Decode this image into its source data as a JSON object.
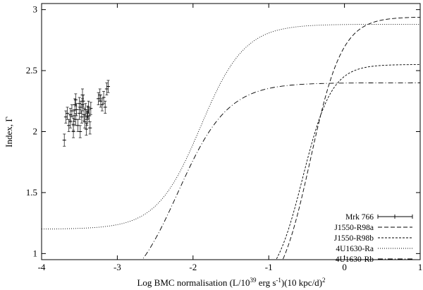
{
  "chart_data": {
    "type": "scatter",
    "title": "",
    "xlabel_main": "Log BMC normalisation (L/10",
    "xlabel_sup1": "39",
    "xlabel_mid": " erg s",
    "xlabel_sup2": "-1",
    "xlabel_tail": ")(10 kpc/d)",
    "xlabel_sup3": "2",
    "ylabel": "Index, Γ",
    "xlim": [
      -4,
      1
    ],
    "ylim": [
      0.95,
      3.05
    ],
    "xticks": [
      {
        "value": -4,
        "label": "-4"
      },
      {
        "value": -3,
        "label": "-3"
      },
      {
        "value": -2,
        "label": "-2"
      },
      {
        "value": -1,
        "label": "-1"
      },
      {
        "value": 0,
        "label": "0"
      },
      {
        "value": 1,
        "label": "1"
      }
    ],
    "yticks": [
      {
        "value": 1,
        "label": "1"
      },
      {
        "value": 1.5,
        "label": "1.5"
      },
      {
        "value": 2,
        "label": "2"
      },
      {
        "value": 2.5,
        "label": "2.5"
      },
      {
        "value": 3,
        "label": "3"
      }
    ],
    "legend_position": "bottom-right",
    "points": {
      "name": "Mrk 766",
      "x": [
        -3.7,
        -3.68,
        -3.66,
        -3.64,
        -3.62,
        -3.6,
        -3.58,
        -3.57,
        -3.56,
        -3.55,
        -3.54,
        -3.52,
        -3.5,
        -3.49,
        -3.48,
        -3.47,
        -3.46,
        -3.45,
        -3.44,
        -3.43,
        -3.42,
        -3.41,
        -3.4,
        -3.39,
        -3.38,
        -3.37,
        -3.36,
        -3.35,
        -3.5,
        -3.58,
        -3.62,
        -3.46,
        -3.4,
        -3.55,
        -3.25,
        -3.23,
        -3.22,
        -3.2,
        -3.18,
        -3.16,
        -3.14,
        -3.12
      ],
      "y": [
        1.93,
        2.12,
        2.15,
        2.05,
        2.08,
        2.17,
        2.0,
        2.13,
        2.22,
        2.1,
        2.18,
        2.05,
        2.15,
        2.0,
        2.2,
        2.12,
        2.3,
        2.25,
        2.14,
        2.08,
        2.18,
        2.02,
        2.1,
        2.16,
        2.2,
        2.13,
        2.03,
        2.19,
        2.23,
        2.06,
        2.14,
        2.22,
        2.12,
        2.26,
        2.27,
        2.3,
        2.25,
        2.22,
        2.28,
        2.2,
        2.35,
        2.37
      ],
      "yerr": 0.05
    },
    "series": [
      {
        "name": "J1550-R98a",
        "style": "dashed-long",
        "x0": -0.45,
        "w": 0.21,
        "ymin": 0.6,
        "ymax": 2.94
      },
      {
        "name": "J1550-R98b",
        "style": "dashed-short",
        "x0": -0.55,
        "w": 0.19,
        "ymin": 0.7,
        "ymax": 2.55
      },
      {
        "name": "4U1630-Ra",
        "style": "dotted",
        "x0": -1.9,
        "w": 0.29,
        "ymin": 1.2,
        "ymax": 2.88
      },
      {
        "name": "4U1630-Rb",
        "style": "dash-dot",
        "x0": -2.2,
        "w": 0.33,
        "ymin": 0.6,
        "ymax": 2.4
      }
    ],
    "legend_error_entry": "Mrk 766"
  }
}
